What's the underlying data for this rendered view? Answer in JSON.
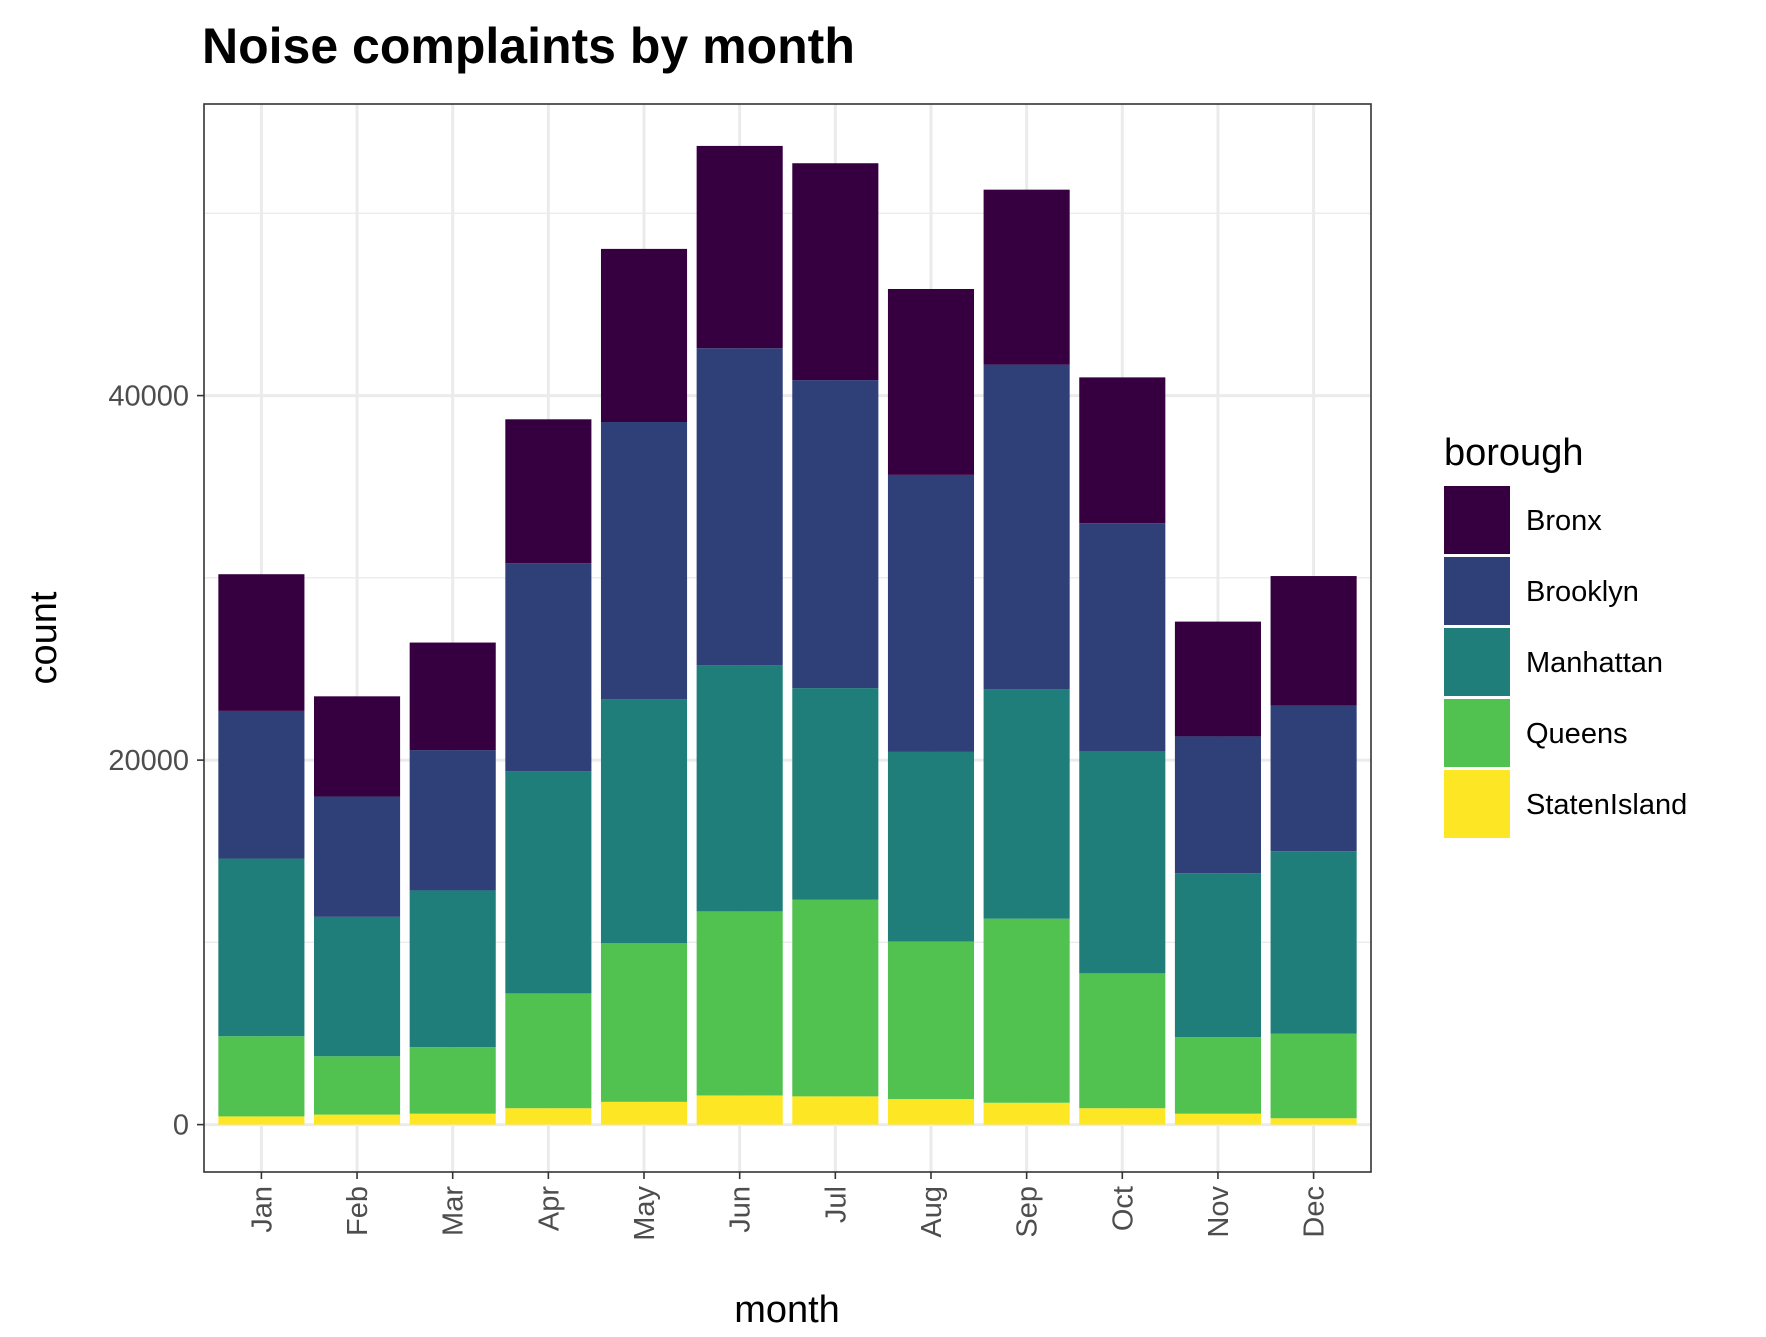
{
  "chart_data": {
    "type": "bar",
    "stacked": true,
    "title": "Noise complaints by month",
    "xlabel": "month",
    "ylabel": "count",
    "ylim": [
      -2600,
      56000
    ],
    "y_ticks": [
      0,
      20000,
      40000
    ],
    "y_tick_labels": [
      "0",
      "20000",
      "40000"
    ],
    "grid": true,
    "legend_title": "borough",
    "legend_position": "right",
    "categories": [
      "Jan",
      "Feb",
      "Mar",
      "Apr",
      "May",
      "Jun",
      "Jul",
      "Aug",
      "Sep",
      "Oct",
      "Nov",
      "Dec"
    ],
    "series": [
      {
        "name": "StatenIsland",
        "color": "#FDE725",
        "values": [
          450,
          550,
          600,
          900,
          1250,
          1600,
          1550,
          1400,
          1200,
          900,
          600,
          350
        ]
      },
      {
        "name": "Queens",
        "color": "#51C24F",
        "values": [
          4400,
          3200,
          3650,
          6300,
          8700,
          10100,
          10800,
          8650,
          10100,
          7400,
          4200,
          4650
        ]
      },
      {
        "name": "Manhattan",
        "color": "#1F7E7A",
        "values": [
          9750,
          7650,
          8600,
          12200,
          13400,
          13500,
          11600,
          10400,
          12600,
          12200,
          9000,
          10000
        ]
      },
      {
        "name": "Brooklyn",
        "color": "#2F3F78",
        "values": [
          8100,
          6600,
          7700,
          11400,
          15200,
          17400,
          16900,
          15200,
          17800,
          12500,
          7500,
          8000
        ]
      },
      {
        "name": "Bronx",
        "color": "#360040",
        "values": [
          7500,
          5500,
          5900,
          7900,
          9500,
          11100,
          11900,
          10200,
          9600,
          8000,
          6300,
          7100
        ]
      }
    ],
    "legend_order": [
      "Bronx",
      "Brooklyn",
      "Manhattan",
      "Queens",
      "StatenIsland"
    ]
  }
}
